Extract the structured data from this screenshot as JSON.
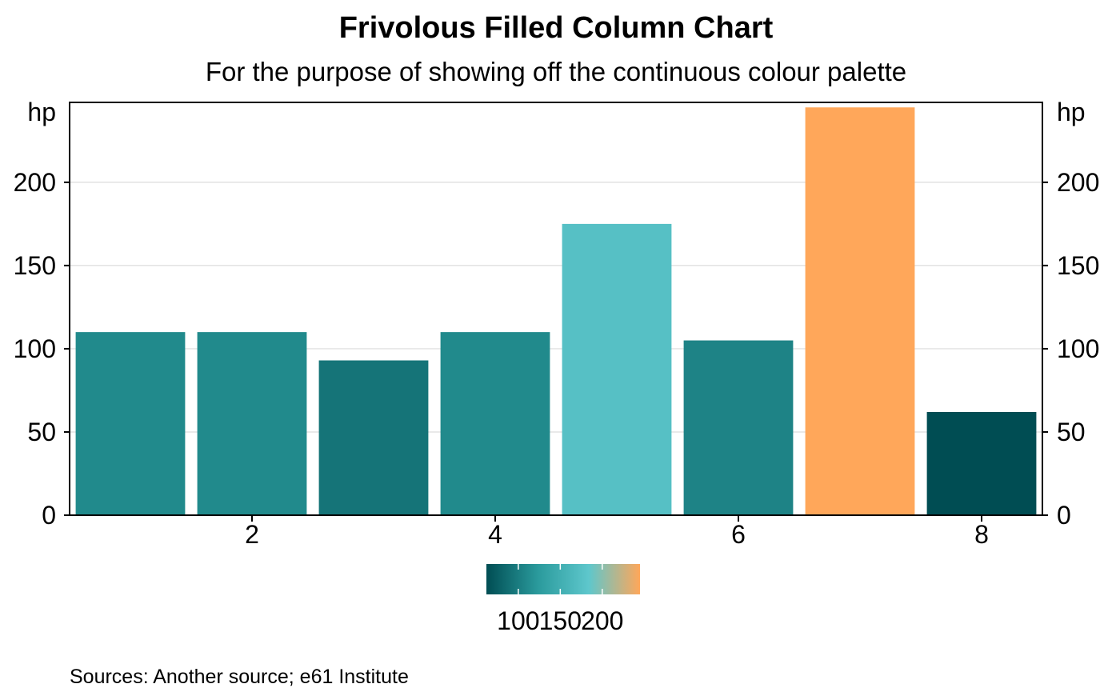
{
  "chart_data": {
    "type": "bar",
    "title": "Frivolous Filled Column Chart",
    "subtitle": "For the purpose of showing off the continuous colour palette",
    "y_unit_left": "hp",
    "y_unit_right": "hp",
    "caption": "Sources: Another source; e61 Institute",
    "x": [
      1,
      2,
      3,
      4,
      5,
      6,
      7,
      8
    ],
    "values": [
      110,
      110,
      93,
      110,
      175,
      105,
      245,
      62
    ],
    "xlim": [
      0.5,
      8.5
    ],
    "ylim": [
      0,
      248
    ],
    "x_ticks": [
      "2",
      "4",
      "6",
      "8"
    ],
    "y_ticks": [
      "0",
      "50",
      "100",
      "150",
      "200"
    ],
    "y_tick_values": [
      0,
      50,
      100,
      150,
      200
    ],
    "x_tick_values": [
      2,
      4,
      6,
      8
    ],
    "grid": "horizontal",
    "legend_position": "bottom",
    "colorbar": {
      "ticks": [
        "100",
        "150",
        "200"
      ],
      "tick_values": [
        100,
        150,
        200
      ],
      "range": [
        62,
        245
      ],
      "stops": [
        "#004d53",
        "#2a9a9c",
        "#5ec7cc",
        "#ffa75a"
      ]
    }
  }
}
